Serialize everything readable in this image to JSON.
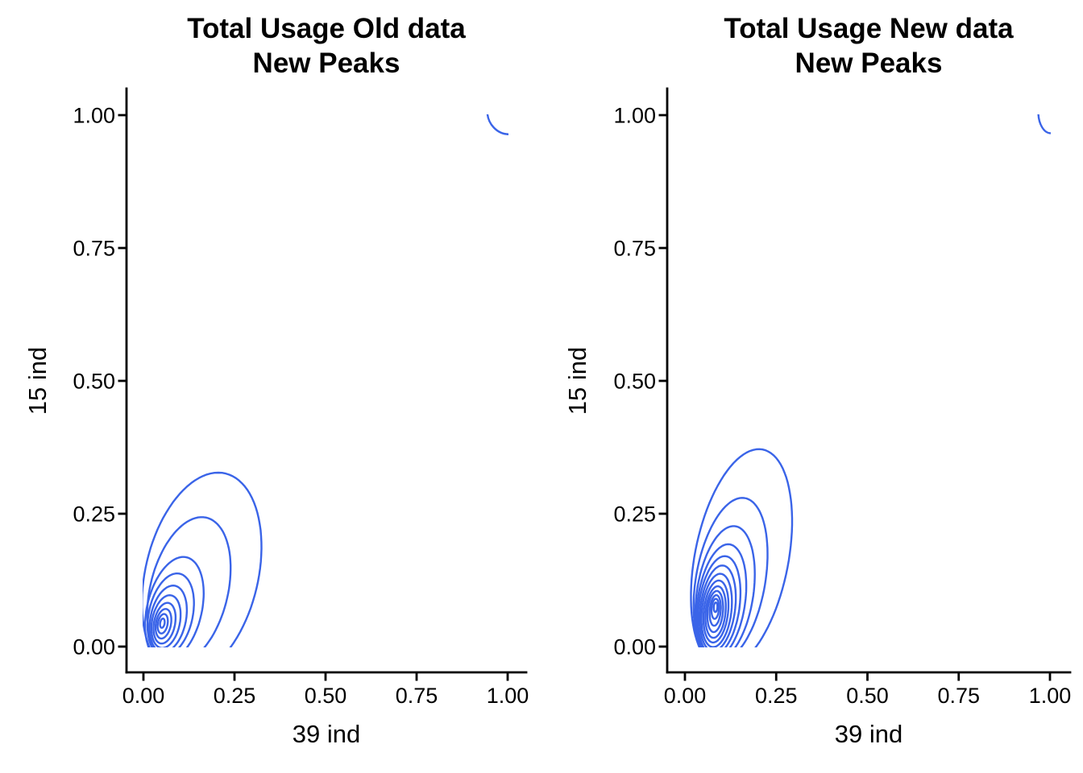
{
  "figure": {
    "background": "#FFFFFF",
    "text_color": "#000000",
    "axis_color": "#000000"
  },
  "chart_data": [
    {
      "type": "density_contour_2d",
      "panel": "left",
      "title_lines": [
        "Total Usage Old data",
        "New Peaks"
      ],
      "xlabel": "39 ind",
      "ylabel": "15 ind",
      "x_tick_labels": [
        "0.00",
        "0.25",
        "0.50",
        "0.75",
        "1.00"
      ],
      "x_tick_values": [
        0,
        0.25,
        0.5,
        0.75,
        1
      ],
      "y_tick_labels": [
        "0.00",
        "0.25",
        "0.50",
        "0.75",
        "1.00"
      ],
      "y_tick_values": [
        0,
        0.25,
        0.5,
        0.75,
        1
      ],
      "xlim": [
        -0.048,
        1.053
      ],
      "ylim": [
        -0.048,
        1.053
      ],
      "clip_to_data_square": [
        0,
        1
      ],
      "contour_color": "#3A64E8",
      "grid": "off",
      "legend": "none",
      "main_density_peak": {
        "x": 0.055,
        "y": 0.045
      },
      "main_blob_extent": {
        "x_max": 0.35,
        "y_max": 0.34
      },
      "n_contour_levels": 10,
      "contour_levels": [
        {
          "cx": 0.16,
          "cy": 0.135,
          "rx": 0.148,
          "ry": 0.205,
          "a": 30
        },
        {
          "cx": 0.125,
          "cy": 0.105,
          "rx": 0.102,
          "ry": 0.148,
          "a": 29
        },
        {
          "cx": 0.085,
          "cy": 0.07,
          "rx": 0.072,
          "ry": 0.105,
          "a": 28
        },
        {
          "cx": 0.075,
          "cy": 0.06,
          "rx": 0.058,
          "ry": 0.082,
          "a": 27
        },
        {
          "cx": 0.068,
          "cy": 0.052,
          "rx": 0.047,
          "ry": 0.066,
          "a": 26
        },
        {
          "cx": 0.062,
          "cy": 0.047,
          "rx": 0.037,
          "ry": 0.052,
          "a": 25
        },
        {
          "cx": 0.058,
          "cy": 0.044,
          "rx": 0.028,
          "ry": 0.04,
          "a": 24
        },
        {
          "cx": 0.055,
          "cy": 0.043,
          "rx": 0.02,
          "ry": 0.029,
          "a": 23
        },
        {
          "cx": 0.053,
          "cy": 0.043,
          "rx": 0.013,
          "ry": 0.019,
          "a": 22
        },
        {
          "cx": 0.052,
          "cy": 0.044,
          "rx": 0.006,
          "ry": 0.009,
          "a": 20
        }
      ],
      "secondary_peak_arc": {
        "cx": 1.004,
        "cy": 1.008,
        "rx": 0.06,
        "ry": 0.044,
        "near": {
          "x": 1.0,
          "y": 1.0
        }
      }
    },
    {
      "type": "density_contour_2d",
      "panel": "right",
      "title_lines": [
        "Total Usage New data",
        "New Peaks"
      ],
      "xlabel": "39 ind",
      "ylabel": "15 ind",
      "x_tick_labels": [
        "0.00",
        "0.25",
        "0.50",
        "0.75",
        "1.00"
      ],
      "x_tick_values": [
        0,
        0.25,
        0.5,
        0.75,
        1
      ],
      "y_tick_labels": [
        "0.00",
        "0.25",
        "0.50",
        "0.75",
        "1.00"
      ],
      "y_tick_values": [
        0,
        0.25,
        0.5,
        0.75,
        1
      ],
      "xlim": [
        -0.048,
        1.053
      ],
      "ylim": [
        -0.048,
        1.053
      ],
      "clip_to_data_square": [
        0,
        1
      ],
      "contour_color": "#3A64E8",
      "grid": "off",
      "legend": "none",
      "main_density_peak": {
        "x": 0.084,
        "y": 0.075
      },
      "main_blob_extent": {
        "x_max": 0.3,
        "y_max": 0.39
      },
      "n_contour_levels": 13,
      "contour_levels": [
        {
          "cx": 0.155,
          "cy": 0.165,
          "rx": 0.125,
          "ry": 0.215,
          "a": 20
        },
        {
          "cx": 0.125,
          "cy": 0.125,
          "rx": 0.093,
          "ry": 0.16,
          "a": 18
        },
        {
          "cx": 0.11,
          "cy": 0.1,
          "rx": 0.076,
          "ry": 0.13,
          "a": 16
        },
        {
          "cx": 0.1,
          "cy": 0.085,
          "rx": 0.064,
          "ry": 0.11,
          "a": 15
        },
        {
          "cx": 0.094,
          "cy": 0.077,
          "rx": 0.055,
          "ry": 0.095,
          "a": 14
        },
        {
          "cx": 0.09,
          "cy": 0.072,
          "rx": 0.047,
          "ry": 0.082,
          "a": 13
        },
        {
          "cx": 0.087,
          "cy": 0.068,
          "rx": 0.04,
          "ry": 0.07,
          "a": 12
        },
        {
          "cx": 0.085,
          "cy": 0.066,
          "rx": 0.033,
          "ry": 0.059,
          "a": 11
        },
        {
          "cx": 0.084,
          "cy": 0.065,
          "rx": 0.027,
          "ry": 0.049,
          "a": 10
        },
        {
          "cx": 0.083,
          "cy": 0.066,
          "rx": 0.021,
          "ry": 0.039,
          "a": 9
        },
        {
          "cx": 0.083,
          "cy": 0.068,
          "rx": 0.015,
          "ry": 0.029,
          "a": 8
        },
        {
          "cx": 0.083,
          "cy": 0.071,
          "rx": 0.01,
          "ry": 0.019,
          "a": 7
        },
        {
          "cx": 0.084,
          "cy": 0.074,
          "rx": 0.005,
          "ry": 0.009,
          "a": 6
        }
      ],
      "secondary_peak_arc": {
        "cx": 1.002,
        "cy": 1.006,
        "rx": 0.034,
        "ry": 0.04,
        "near": {
          "x": 1.0,
          "y": 1.0
        }
      }
    }
  ]
}
